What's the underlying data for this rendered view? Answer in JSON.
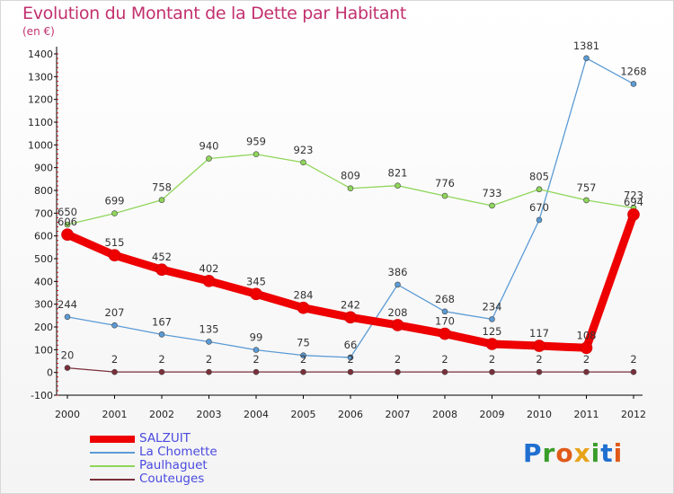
{
  "title": "Evolution du Montant de la Dette par Habitant",
  "unit": "(en €)",
  "logo": {
    "letters": [
      {
        "ch": "P",
        "color": "#1f6fd0"
      },
      {
        "ch": "r",
        "color": "#3a9d2a"
      },
      {
        "ch": "o",
        "color": "#e05a1a"
      },
      {
        "ch": "x",
        "color": "#e8a21a"
      },
      {
        "ch": "i",
        "color": "#3a9d2a"
      },
      {
        "ch": "t",
        "color": "#1f6fd0"
      },
      {
        "ch": "i",
        "color": "#e05a1a"
      }
    ]
  },
  "chart_data": {
    "type": "line",
    "title": "Evolution du Montant de la Dette par Habitant",
    "ylabel": "(en €)",
    "x": [
      "2000",
      "2001",
      "2002",
      "2003",
      "2004",
      "2005",
      "2006",
      "2007",
      "2008",
      "2009",
      "2010",
      "2011",
      "2012"
    ],
    "ylim": [
      -100,
      1400
    ],
    "yticks": [
      -100,
      0,
      100,
      200,
      300,
      400,
      500,
      600,
      700,
      800,
      900,
      1000,
      1100,
      1200,
      1300,
      1400
    ],
    "grid": false,
    "legend": "bottom-left",
    "series": [
      {
        "name": "SALZUIT",
        "color": "#ee0000",
        "width": 9,
        "values": [
          606,
          515,
          452,
          402,
          345,
          284,
          242,
          208,
          170,
          125,
          117,
          108,
          694
        ],
        "labels": [
          "606",
          "515",
          "452",
          "402",
          "345",
          "284",
          "242",
          "208",
          "170",
          "125",
          "117",
          "108",
          "694"
        ]
      },
      {
        "name": "La Chomette",
        "color": "#5b9bd5",
        "width": 1.3,
        "values": [
          244,
          207,
          167,
          135,
          99,
          75,
          66,
          386,
          268,
          234,
          670,
          1381,
          1268
        ],
        "labels": [
          "244",
          "207",
          "167",
          "135",
          "99",
          "75",
          "66",
          "386",
          "268",
          "234",
          "670",
          "1381",
          "1268"
        ]
      },
      {
        "name": "Paulhaguet",
        "color": "#8fd65a",
        "width": 1.3,
        "values": [
          650,
          699,
          758,
          940,
          959,
          923,
          809,
          821,
          776,
          733,
          805,
          757,
          723
        ],
        "labels": [
          "650",
          "699",
          "758",
          "940",
          "959",
          "923",
          "809",
          "821",
          "776",
          "733",
          "805",
          "757",
          "723"
        ]
      },
      {
        "name": "Couteuges",
        "color": "#7a2f3a",
        "width": 1.3,
        "values": [
          20,
          2,
          2,
          2,
          2,
          2,
          2,
          2,
          2,
          2,
          2,
          2,
          2
        ],
        "labels": [
          "20",
          "2",
          "2",
          "2",
          "2",
          "2",
          "2",
          "2",
          "2",
          "2",
          "2",
          "2",
          "2"
        ]
      }
    ]
  }
}
